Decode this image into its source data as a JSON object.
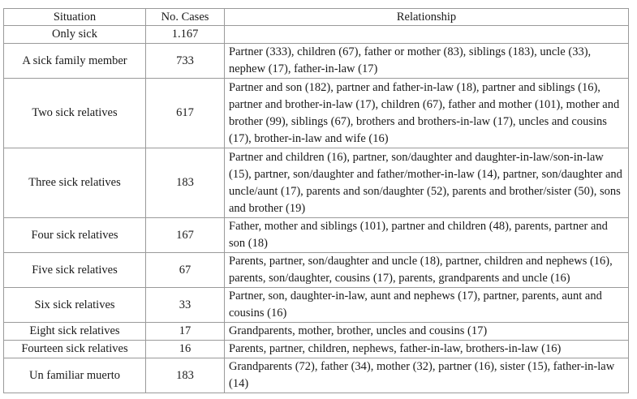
{
  "headers": {
    "situation": "Situation",
    "cases": "No. Cases",
    "relationship": "Relationship"
  },
  "rows": [
    {
      "situation": "Only sick",
      "cases": "1.167",
      "relationship": ""
    },
    {
      "situation": "A sick family member",
      "cases": "733",
      "relationship": "Partner (333), children (67), father or mother (83), siblings (183), uncle (33), nephew (17), father-in-law (17)"
    },
    {
      "situation": "Two sick relatives",
      "cases": "617",
      "relationship": "Partner and son (182), partner and father-in-law (18), partner and siblings (16), partner and brother-in-law (17), children (67), father and mother (101), mother and brother (99), siblings (67), brothers and brothers-in-law (17), uncles and cousins (17), brother-in-law and wife (16)"
    },
    {
      "situation": "Three sick relatives",
      "cases": "183",
      "relationship": "Partner and children (16), partner, son/daughter and daughter-in-law/son-in-law (15), partner, son/daughter and father/mother-in-law (14), partner, son/daughter and uncle/aunt (17), parents and son/daughter (52), parents and brother/sister (50), sons and brother (19)"
    },
    {
      "situation": "Four sick relatives",
      "cases": "167",
      "relationship": "Father, mother and siblings (101), partner and children (48), parents, partner and son (18)"
    },
    {
      "situation": "Five sick relatives",
      "cases": "67",
      "relationship": "Parents, partner, son/daughter and uncle (18), partner, children and nephews (16), parents, son/daughter, cousins (17), parents, grandparents and uncle (16)"
    },
    {
      "situation": "Six sick relatives",
      "cases": "33",
      "relationship": "Partner, son, daughter-in-law, aunt and nephews (17), partner, parents, aunt and cousins (16)"
    },
    {
      "situation": "Eight sick relatives",
      "cases": "17",
      "relationship": "Grandparents, mother, brother, uncles and cousins (17)"
    },
    {
      "situation": "Fourteen sick relatives",
      "cases": "16",
      "relationship": "Parents, partner, children, nephews, father-in-law, brothers-in-law (16)"
    },
    {
      "situation": "Un familiar muerto",
      "cases": "183",
      "relationship": "Grandparents (72), father (34), mother (32), partner (16), sister (15), father-in-law (14)"
    }
  ]
}
